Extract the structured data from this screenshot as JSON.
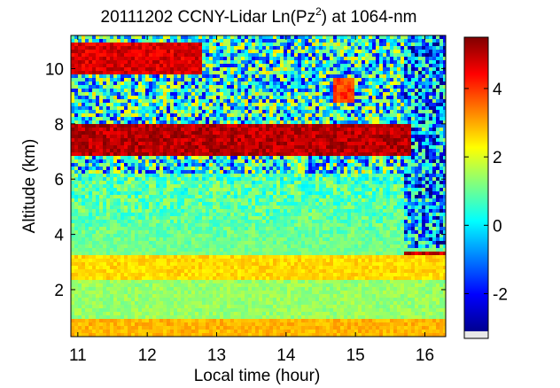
{
  "chart_data": {
    "type": "heatmap",
    "title_main": "20111202 CCNY-Lidar Ln(Pz",
    "title_sup": "2",
    "title_tail": ") at 1064-nm",
    "xlabel": "Local time (hour)",
    "ylabel": "Altitude (km)",
    "xlim": [
      10.9,
      16.3
    ],
    "ylim": [
      0.3,
      11.2
    ],
    "xticks": [
      11,
      12,
      13,
      14,
      15,
      16
    ],
    "xtick_labels": [
      "11",
      "12",
      "13",
      "14",
      "15",
      "16"
    ],
    "yticks": [
      2,
      4,
      6,
      8,
      10
    ],
    "ytick_labels": [
      "2",
      "4",
      "6",
      "8",
      "10"
    ],
    "colorbar": {
      "clim": [
        -3.1,
        5.5
      ],
      "ticks": [
        -2,
        0,
        2,
        4
      ],
      "tick_labels": [
        "-2",
        "0",
        "2",
        "4"
      ],
      "colormap": "jet"
    },
    "features": [
      {
        "name": "cloud-layer-8km",
        "t_start": 10.9,
        "t_end": 15.8,
        "alt_bottom": 6.9,
        "alt_top": 8.0,
        "value": 5.5
      },
      {
        "name": "cirrus-10-5km",
        "t_start": 10.9,
        "t_end": 12.8,
        "alt_bottom": 9.8,
        "alt_top": 10.9,
        "value": 5.2
      },
      {
        "name": "cirrus-fragments-15km",
        "t_start": 14.7,
        "t_end": 15.0,
        "alt_bottom": 8.8,
        "alt_top": 9.6,
        "value": 4.5
      },
      {
        "name": "low-cloud-3km",
        "t_start": 15.7,
        "t_end": 16.3,
        "alt_bottom": 2.9,
        "alt_top": 3.4,
        "value": 5.4
      },
      {
        "name": "aerosol-layer-3km",
        "t_start": 10.9,
        "t_end": 16.3,
        "alt_bottom": 2.3,
        "alt_top": 3.2,
        "value": 2.6
      },
      {
        "name": "boundary-layer",
        "t_start": 10.9,
        "t_end": 16.3,
        "alt_bottom": 0.3,
        "alt_top": 1.0,
        "value": 2.9
      }
    ]
  }
}
